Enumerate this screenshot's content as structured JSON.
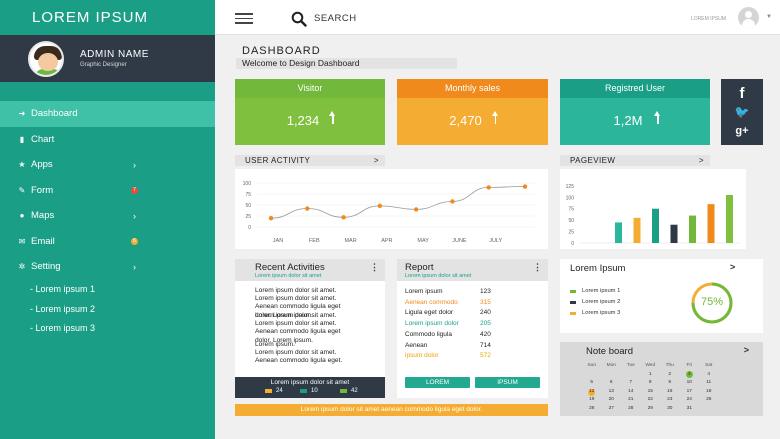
{
  "sidebar": {
    "brand": "LOREM  IPSUM",
    "profile": {
      "name": "ADMIN NAME",
      "role": "Graphic Designer"
    },
    "nav": [
      {
        "label": "Dashboard",
        "icon": "arrow-right-icon",
        "glyph": "➜",
        "chevron": false,
        "active": true
      },
      {
        "label": "Chart",
        "icon": "bar-chart-icon",
        "glyph": "▮",
        "chevron": false
      },
      {
        "label": "Apps",
        "icon": "star-icon",
        "glyph": "★",
        "chevron": true
      },
      {
        "label": "Form",
        "icon": "pencil-icon",
        "glyph": "✎",
        "badge": "7",
        "badge_color": "#e84c3d"
      },
      {
        "label": "Maps",
        "icon": "map-pin-icon",
        "glyph": "●",
        "chevron": true
      },
      {
        "label": "Email",
        "icon": "envelope-icon",
        "glyph": "✉",
        "badge": "6",
        "badge_color": "#f4ad32"
      },
      {
        "label": "Setting",
        "icon": "gear-icon",
        "glyph": "✲",
        "chevron": true
      }
    ],
    "sub_items": [
      "- Lorem ipsum 1",
      "- Lorem ipsum 2",
      "- Lorem ipsum 3"
    ]
  },
  "topbar": {
    "search_label": "SEARCH",
    "user_label": "LOREM IPSUM"
  },
  "dashboard": {
    "title": "DASHBOARD",
    "welcome": "Welcome to Design Dashboard"
  },
  "stats": [
    {
      "label": "Visitor",
      "value": "1,234",
      "header_color": "#72b83b",
      "body_color": "#7fc13f"
    },
    {
      "label": "Monthly sales",
      "value": "2,470",
      "header_color": "#f08a1c",
      "body_color": "#f4ad32"
    },
    {
      "label": "Registred User",
      "value": "1,2M",
      "header_color": "#1a9f86",
      "body_color": "#2bb69b"
    }
  ],
  "social": [
    "f",
    "🐦",
    "g+"
  ],
  "user_activity": {
    "title": "USER ACTIVITY",
    "chart_data": {
      "type": "line",
      "categories": [
        "JAN",
        "FEB",
        "MAR",
        "APR",
        "MAY",
        "JUNE",
        "JULY",
        ""
      ],
      "y_ticks": [
        0,
        25,
        50,
        75,
        100
      ],
      "ylim": [
        0,
        100
      ],
      "values": [
        20,
        42,
        22,
        48,
        40,
        58,
        90,
        92
      ],
      "dot_colors": [
        "#f08a1c",
        "#f08a1c",
        "#f08a1c",
        "#f08a1c",
        "#f08a1c",
        "#f08a1c",
        "#f08a1c",
        "#f08a1c"
      ],
      "line_color": "#999999"
    }
  },
  "pageview": {
    "title": "PAGEVIEW",
    "chart_data": {
      "type": "bar",
      "y_ticks": [
        0,
        25,
        50,
        75,
        100,
        125
      ],
      "ylim": [
        0,
        140
      ],
      "values": [
        45,
        55,
        75,
        40,
        60,
        85,
        105
      ],
      "colors": [
        "#2bb69b",
        "#f4ad32",
        "#1a9f86",
        "#2f3a46",
        "#72b83b",
        "#f08a1c",
        "#7fc13f"
      ]
    }
  },
  "recent": {
    "title": "Recent Activities",
    "subtitle": "Lorem ipsum dolor sit amet",
    "items": [
      [
        "Lorem ipsum dolor sit amet.",
        "Lorem ipsum dolor sit amet.",
        "Aenean commodo ligula eget",
        "dolor. Lorem ipsum."
      ],
      [
        "Lorem ipsum dolor sit amet.",
        "Lorem ipsum dolor sit amet.",
        "Aenean commodo ligula eget",
        "dolor. Lorem ipsum."
      ],
      [
        "Lorem ipsum.",
        "Lorem ipsum dolor sit amet.",
        "Aenean commodo ligula eget."
      ]
    ],
    "footer": "Lorem ipsum dolor sit amet",
    "footer_stats": [
      {
        "icon": "chat-icon",
        "value": "24",
        "color": "#f4ad32"
      },
      {
        "icon": "star-icon",
        "value": "10",
        "color": "#1a9f86"
      },
      {
        "icon": "comment-icon",
        "value": "42",
        "color": "#72b83b"
      }
    ]
  },
  "report": {
    "title": "Report",
    "subtitle": "Lorem ipsum dolor sit amet",
    "rows": [
      {
        "label": "Lorem ipsum",
        "value": "123",
        "color": "#222222"
      },
      {
        "label": "Aenean commodo",
        "value": "315",
        "color": "#f08a1c"
      },
      {
        "label": "Ligula eget dolor",
        "value": "240",
        "color": "#222222"
      },
      {
        "label": "Lorem ipsum dolor",
        "value": "205",
        "color": "#1a9f86"
      },
      {
        "label": "Commodo ligula",
        "value": "420",
        "color": "#222222"
      },
      {
        "label": "Aenean",
        "value": "714",
        "color": "#222222"
      },
      {
        "label": "ipsum dolor",
        "value": "572",
        "color": "#e8a400"
      }
    ],
    "buttons": [
      "LOREM",
      "IPSUM"
    ]
  },
  "lorem_ipsum_card": {
    "title": "Lorem Ipsum",
    "legend": [
      {
        "label": "Lorem ipsum 1",
        "color": "#72b83b"
      },
      {
        "label": "Lorem ipsum 2",
        "color": "#2f3a46"
      },
      {
        "label": "Lorem ipsum 3",
        "color": "#f4ad32"
      }
    ],
    "gauge": {
      "value_text": "75%",
      "fraction": 0.75,
      "color": "#72b83b",
      "rest_color": "#f4ad32"
    }
  },
  "note_board": {
    "title": "Note board",
    "days": [
      "Sun",
      "Mon",
      "Tue",
      "Wed",
      "Thu",
      "Fri",
      "Sat"
    ],
    "weeks": [
      [
        "",
        "",
        "",
        "1",
        "2",
        "3",
        "4"
      ],
      [
        "5",
        "6",
        "7",
        "8",
        "9",
        "10",
        "11"
      ],
      [
        "12",
        "13",
        "14",
        "15",
        "16",
        "17",
        "18"
      ],
      [
        "19",
        "20",
        "21",
        "22",
        "23",
        "24",
        "25"
      ],
      [
        "26",
        "27",
        "28",
        "29",
        "30",
        "31",
        ""
      ]
    ],
    "marked": {
      "3": "#72b83b",
      "12": "#f4ad32"
    }
  },
  "bottom_bar": "Lorem ipsum dolor sit amet aenean commodo ligula eget dolor."
}
